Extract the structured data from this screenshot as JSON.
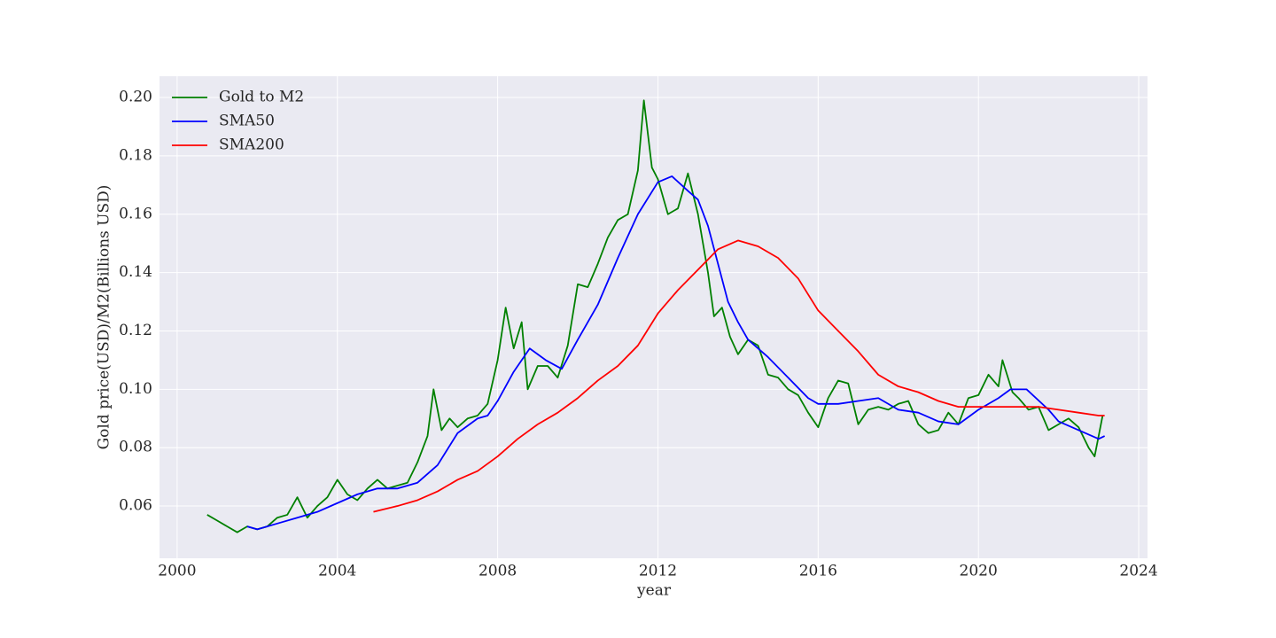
{
  "chart_data": {
    "type": "line",
    "x_label": "year",
    "y_label": "Gold price(USD)/M2(Billions USD)",
    "xlim": [
      1999.56,
      2024.22
    ],
    "ylim": [
      0.0421,
      0.2073
    ],
    "xticks": [
      2000,
      2004,
      2008,
      2012,
      2016,
      2020,
      2024
    ],
    "yticks": [
      0.06,
      0.08,
      {
        "value": 0.1,
        "label": "0.10"
      },
      0.12,
      0.14,
      0.16,
      0.18,
      {
        "value": 0.2,
        "label": "0.20"
      }
    ],
    "grid": true,
    "legend": "upper left",
    "series": [
      {
        "name": "Gold to M2",
        "color": "#008000",
        "x": [
          2000.75,
          2001.0,
          2001.25,
          2001.5,
          2001.75,
          2002.0,
          2002.25,
          2002.5,
          2002.75,
          2003.0,
          2003.25,
          2003.5,
          2003.75,
          2004.0,
          2004.25,
          2004.5,
          2004.75,
          2005.0,
          2005.25,
          2005.5,
          2005.75,
          2006.0,
          2006.25,
          2006.4,
          2006.6,
          2006.8,
          2007.0,
          2007.25,
          2007.5,
          2007.75,
          2008.0,
          2008.2,
          2008.4,
          2008.6,
          2008.75,
          2009.0,
          2009.25,
          2009.5,
          2009.75,
          2010.0,
          2010.25,
          2010.5,
          2010.75,
          2011.0,
          2011.25,
          2011.5,
          2011.65,
          2011.85,
          2012.0,
          2012.25,
          2012.5,
          2012.75,
          2013.0,
          2013.25,
          2013.4,
          2013.6,
          2013.8,
          2014.0,
          2014.25,
          2014.5,
          2014.75,
          2015.0,
          2015.25,
          2015.5,
          2015.75,
          2016.0,
          2016.25,
          2016.5,
          2016.75,
          2017.0,
          2017.25,
          2017.5,
          2017.75,
          2018.0,
          2018.25,
          2018.5,
          2018.75,
          2019.0,
          2019.25,
          2019.5,
          2019.75,
          2020.0,
          2020.25,
          2020.5,
          2020.6,
          2020.85,
          2021.0,
          2021.25,
          2021.5,
          2021.75,
          2022.0,
          2022.25,
          2022.5,
          2022.75,
          2022.9,
          2023.0,
          2023.1
        ],
        "values": [
          0.057,
          0.055,
          0.053,
          0.051,
          0.053,
          0.052,
          0.053,
          0.056,
          0.057,
          0.063,
          0.056,
          0.06,
          0.063,
          0.069,
          0.064,
          0.062,
          0.066,
          0.069,
          0.066,
          0.067,
          0.068,
          0.075,
          0.084,
          0.1,
          0.086,
          0.09,
          0.087,
          0.09,
          0.091,
          0.095,
          0.11,
          0.128,
          0.114,
          0.123,
          0.1,
          0.108,
          0.108,
          0.104,
          0.115,
          0.136,
          0.135,
          0.143,
          0.152,
          0.158,
          0.16,
          0.175,
          0.199,
          0.176,
          0.172,
          0.16,
          0.162,
          0.174,
          0.16,
          0.14,
          0.125,
          0.128,
          0.118,
          0.112,
          0.117,
          0.115,
          0.105,
          0.104,
          0.1,
          0.098,
          0.092,
          0.087,
          0.097,
          0.103,
          0.102,
          0.088,
          0.093,
          0.094,
          0.093,
          0.095,
          0.096,
          0.088,
          0.085,
          0.086,
          0.092,
          0.088,
          0.097,
          0.098,
          0.105,
          0.101,
          0.11,
          0.099,
          0.097,
          0.093,
          0.094,
          0.086,
          0.088,
          0.09,
          0.087,
          0.08,
          0.077,
          0.084,
          0.091
        ]
      },
      {
        "name": "SMA50",
        "color": "#0000ff",
        "x": [
          2001.75,
          2002.0,
          2002.5,
          2003.0,
          2003.5,
          2004.0,
          2004.5,
          2005.0,
          2005.5,
          2006.0,
          2006.5,
          2007.0,
          2007.5,
          2007.75,
          2008.0,
          2008.4,
          2008.8,
          2009.2,
          2009.6,
          2010.0,
          2010.5,
          2011.0,
          2011.5,
          2012.0,
          2012.35,
          2012.75,
          2013.0,
          2013.25,
          2013.5,
          2013.75,
          2014.0,
          2014.25,
          2014.75,
          2015.25,
          2015.75,
          2016.0,
          2016.5,
          2017.0,
          2017.5,
          2018.0,
          2018.5,
          2019.0,
          2019.5,
          2020.0,
          2020.5,
          2020.8,
          2021.2,
          2021.75,
          2022.0,
          2022.5,
          2023.0,
          2023.15
        ],
        "values": [
          0.053,
          0.052,
          0.054,
          0.056,
          0.058,
          0.061,
          0.064,
          0.066,
          0.066,
          0.068,
          0.074,
          0.085,
          0.09,
          0.091,
          0.096,
          0.106,
          0.114,
          0.11,
          0.107,
          0.117,
          0.129,
          0.145,
          0.16,
          0.171,
          0.173,
          0.168,
          0.165,
          0.156,
          0.143,
          0.13,
          0.123,
          0.117,
          0.111,
          0.104,
          0.097,
          0.095,
          0.095,
          0.096,
          0.097,
          0.093,
          0.092,
          0.089,
          0.088,
          0.093,
          0.097,
          0.1,
          0.1,
          0.093,
          0.089,
          0.086,
          0.083,
          0.084
        ]
      },
      {
        "name": "SMA200",
        "color": "#ff0000",
        "x": [
          2004.9,
          2005.5,
          2006.0,
          2006.5,
          2007.0,
          2007.5,
          2008.0,
          2008.5,
          2009.0,
          2009.5,
          2010.0,
          2010.5,
          2011.0,
          2011.5,
          2012.0,
          2012.5,
          2013.0,
          2013.5,
          2014.0,
          2014.5,
          2015.0,
          2015.5,
          2016.0,
          2016.5,
          2017.0,
          2017.5,
          2018.0,
          2018.5,
          2019.0,
          2019.5,
          2020.0,
          2020.5,
          2021.0,
          2021.5,
          2022.0,
          2022.5,
          2023.0,
          2023.15
        ],
        "values": [
          0.058,
          0.06,
          0.062,
          0.065,
          0.069,
          0.072,
          0.077,
          0.083,
          0.088,
          0.092,
          0.097,
          0.103,
          0.108,
          0.115,
          0.126,
          0.134,
          0.141,
          0.148,
          0.151,
          0.149,
          0.145,
          0.138,
          0.127,
          0.12,
          0.113,
          0.105,
          0.101,
          0.099,
          0.096,
          0.094,
          0.094,
          0.094,
          0.094,
          0.094,
          0.093,
          0.092,
          0.091,
          0.091
        ]
      }
    ]
  }
}
